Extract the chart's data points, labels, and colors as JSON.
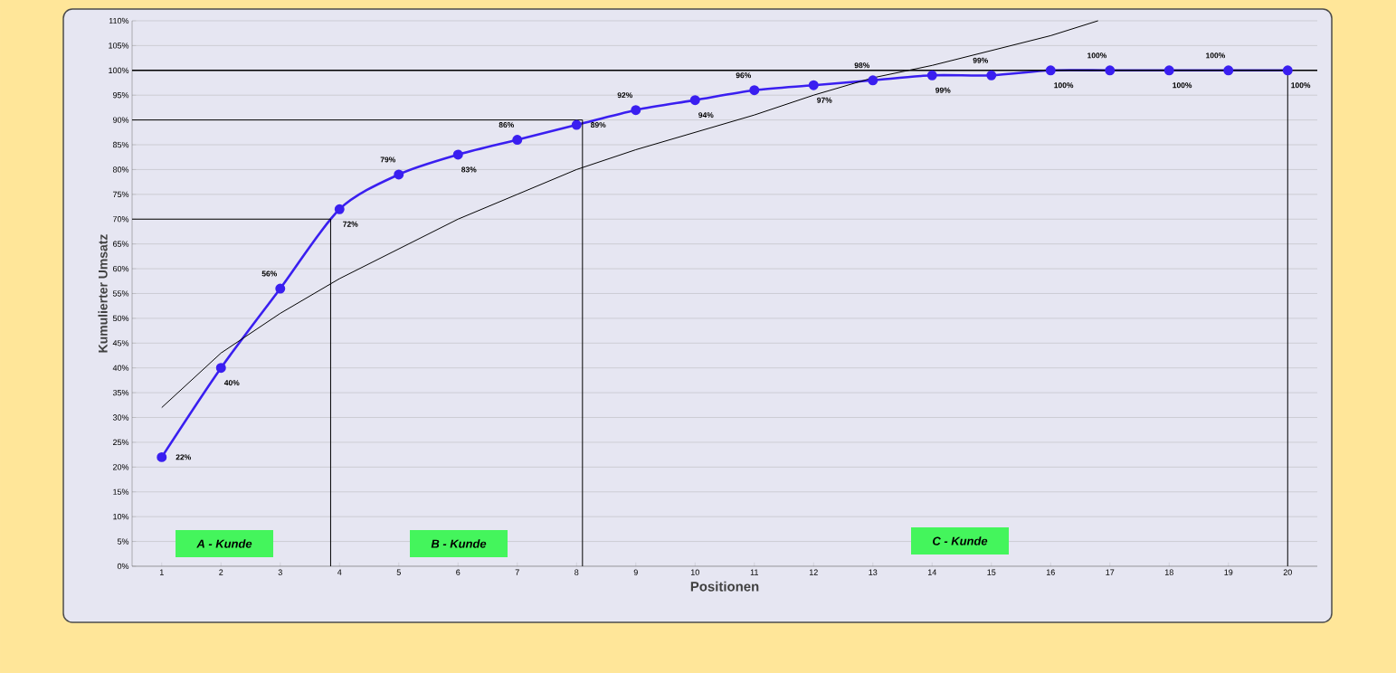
{
  "chart_data": {
    "type": "line",
    "xlabel": "Positionen",
    "ylabel": "Kumulierter Umsatz",
    "xlim": [
      0.5,
      20.5
    ],
    "xticks": [
      1,
      2,
      3,
      4,
      5,
      6,
      7,
      8,
      9,
      10,
      11,
      12,
      13,
      14,
      15,
      16,
      17,
      18,
      19,
      20
    ],
    "ylim": [
      0,
      110
    ],
    "yticks": [
      {
        "value": 0,
        "label": "0%"
      },
      {
        "value": 5,
        "label": "5%"
      },
      {
        "value": 10,
        "label": "10%"
      },
      {
        "value": 15,
        "label": "15%"
      },
      {
        "value": 20,
        "label": "20%"
      },
      {
        "value": 25,
        "label": "25%"
      },
      {
        "value": 30,
        "label": "30%"
      },
      {
        "value": 35,
        "label": "35%"
      },
      {
        "value": 40,
        "label": "40%"
      },
      {
        "value": 45,
        "label": "45%"
      },
      {
        "value": 50,
        "label": "50%"
      },
      {
        "value": 55,
        "label": "55%"
      },
      {
        "value": 60,
        "label": "60%"
      },
      {
        "value": 65,
        "label": "65%"
      },
      {
        "value": 70,
        "label": "70%"
      },
      {
        "value": 75,
        "label": "75%"
      },
      {
        "value": 80,
        "label": "80%"
      },
      {
        "value": 85,
        "label": "85%"
      },
      {
        "value": 90,
        "label": "90%"
      },
      {
        "value": 95,
        "label": "95%"
      },
      {
        "value": 100,
        "label": "100%"
      },
      {
        "value": 105,
        "label": "105%"
      },
      {
        "value": 110,
        "label": "110%"
      }
    ],
    "grid": "y",
    "series": [
      {
        "color": "#3a1ff0",
        "marker": "circle",
        "x": [
          1,
          2,
          3,
          4,
          5,
          6,
          7,
          8,
          9,
          10,
          11,
          12,
          13,
          14,
          15,
          16,
          17,
          18,
          19,
          20
        ],
        "values": [
          22,
          40,
          56,
          72,
          79,
          83,
          86,
          89,
          92,
          94,
          96,
          97,
          98,
          99,
          99,
          100,
          100,
          100,
          100,
          100
        ],
        "value_labels": [
          "22%",
          "40%",
          "56%",
          "72%",
          "79%",
          "83%",
          "86%",
          "89%",
          "92%",
          "94%",
          "96%",
          "97%",
          "98%",
          "99%",
          "99%",
          "100%",
          "100%",
          "100%",
          "100%",
          "100%"
        ]
      },
      {
        "color": "#000000",
        "marker": "none",
        "x": [
          1,
          2,
          3,
          4,
          5,
          6,
          7,
          8,
          9,
          10,
          11,
          12,
          13,
          14,
          15,
          16,
          16.8
        ],
        "values": [
          32,
          43,
          51,
          58,
          64,
          70,
          75,
          80,
          84,
          87.5,
          91,
          95,
          98.5,
          101,
          104,
          107,
          110
        ]
      },
      {
        "color": "#000000",
        "marker": "none",
        "x": [
          0.5,
          3.85,
          3.85
        ],
        "values": [
          70,
          70,
          0
        ]
      },
      {
        "color": "#000000",
        "marker": "none",
        "x": [
          0.5,
          8.1,
          8.1
        ],
        "values": [
          90,
          90,
          0
        ]
      },
      {
        "color": "#000000",
        "marker": "none",
        "x": [
          20,
          20
        ],
        "values": [
          0,
          100
        ]
      }
    ],
    "ref_lines": [
      {
        "axis": "y",
        "value": 100,
        "color": "#000000"
      }
    ],
    "annotations": [
      "A - Kunde",
      "B - Kunde",
      "C - Kunde"
    ]
  }
}
